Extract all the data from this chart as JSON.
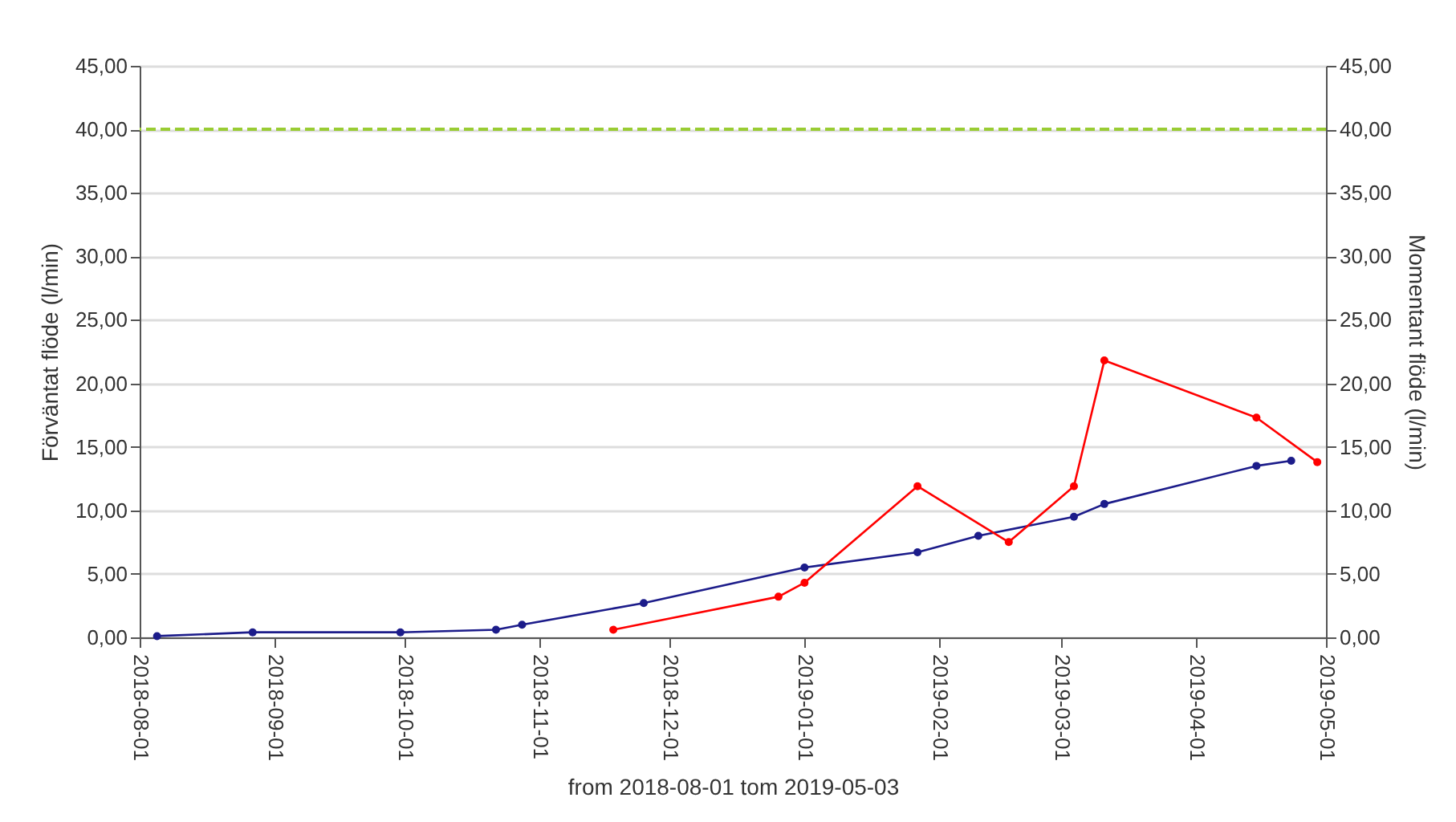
{
  "chart_data": {
    "type": "line",
    "xlabel": "from 2018-08-01 tom 2019-05-03",
    "ylabel": "Förväntat flöde (l/min)",
    "y2label": "Momentant flöde (l/min)",
    "series": [
      {
        "color": "#1c1c8a",
        "x": [
          "2018-08-05",
          "2018-08-27",
          "2018-09-30",
          "2018-10-22",
          "2018-10-28",
          "2018-11-25",
          "2019-01-01",
          "2019-01-27",
          "2019-02-10",
          "2019-03-04",
          "2019-03-11",
          "2019-04-15",
          "2019-04-23"
        ],
        "values": [
          0.1,
          0.4,
          0.4,
          0.6,
          1.0,
          2.7,
          5.5,
          6.7,
          8.0,
          9.5,
          10.5,
          13.5,
          13.9
        ]
      },
      {
        "color": "#ff0000",
        "axis": "y2",
        "x": [
          "2018-11-18",
          "2018-12-26",
          "2019-01-01",
          "2019-01-27",
          "2019-02-17",
          "2019-03-04",
          "2019-03-11",
          "2019-04-15",
          "2019-04-29"
        ],
        "values": [
          0.6,
          3.2,
          4.3,
          11.9,
          7.5,
          11.9,
          21.8,
          17.3,
          13.8
        ]
      }
    ],
    "xlim": [
      "2018-08-01",
      "2019-05-01"
    ],
    "xticks": [
      "2018-08-01",
      "2018-09-01",
      "2018-10-01",
      "2018-11-01",
      "2018-12-01",
      "2019-01-01",
      "2019-02-01",
      "2019-03-01",
      "2019-04-01",
      "2019-05-01"
    ],
    "ylim": [
      0,
      45
    ],
    "yticks": [
      {
        "value": 0,
        "label": "0,00"
      },
      {
        "value": 5,
        "label": "5,00"
      },
      {
        "value": 10,
        "label": "10,00"
      },
      {
        "value": 15,
        "label": "15,00"
      },
      {
        "value": 20,
        "label": "20,00"
      },
      {
        "value": 25,
        "label": "25,00"
      },
      {
        "value": 30,
        "label": "30,00"
      },
      {
        "value": 35,
        "label": "35,00"
      },
      {
        "value": 40,
        "label": "40,00"
      },
      {
        "value": 45,
        "label": "45,00"
      }
    ],
    "y2lim": [
      0,
      45
    ],
    "y2ticks": [
      {
        "value": 0,
        "label": "0,00"
      },
      {
        "value": 5,
        "label": "5,00"
      },
      {
        "value": 10,
        "label": "10,00"
      },
      {
        "value": 15,
        "label": "15,00"
      },
      {
        "value": 20,
        "label": "20,00"
      },
      {
        "value": 25,
        "label": "25,00"
      },
      {
        "value": 30,
        "label": "30,00"
      },
      {
        "value": 35,
        "label": "35,00"
      },
      {
        "value": 40,
        "label": "40,00"
      },
      {
        "value": 45,
        "label": "45,00"
      }
    ],
    "ref_lines": [
      {
        "axis": "y",
        "value": 40,
        "color": "#99cc33",
        "line_style": "dashed"
      }
    ],
    "grid": "y",
    "marker": "circle",
    "line_style": "solid"
  }
}
